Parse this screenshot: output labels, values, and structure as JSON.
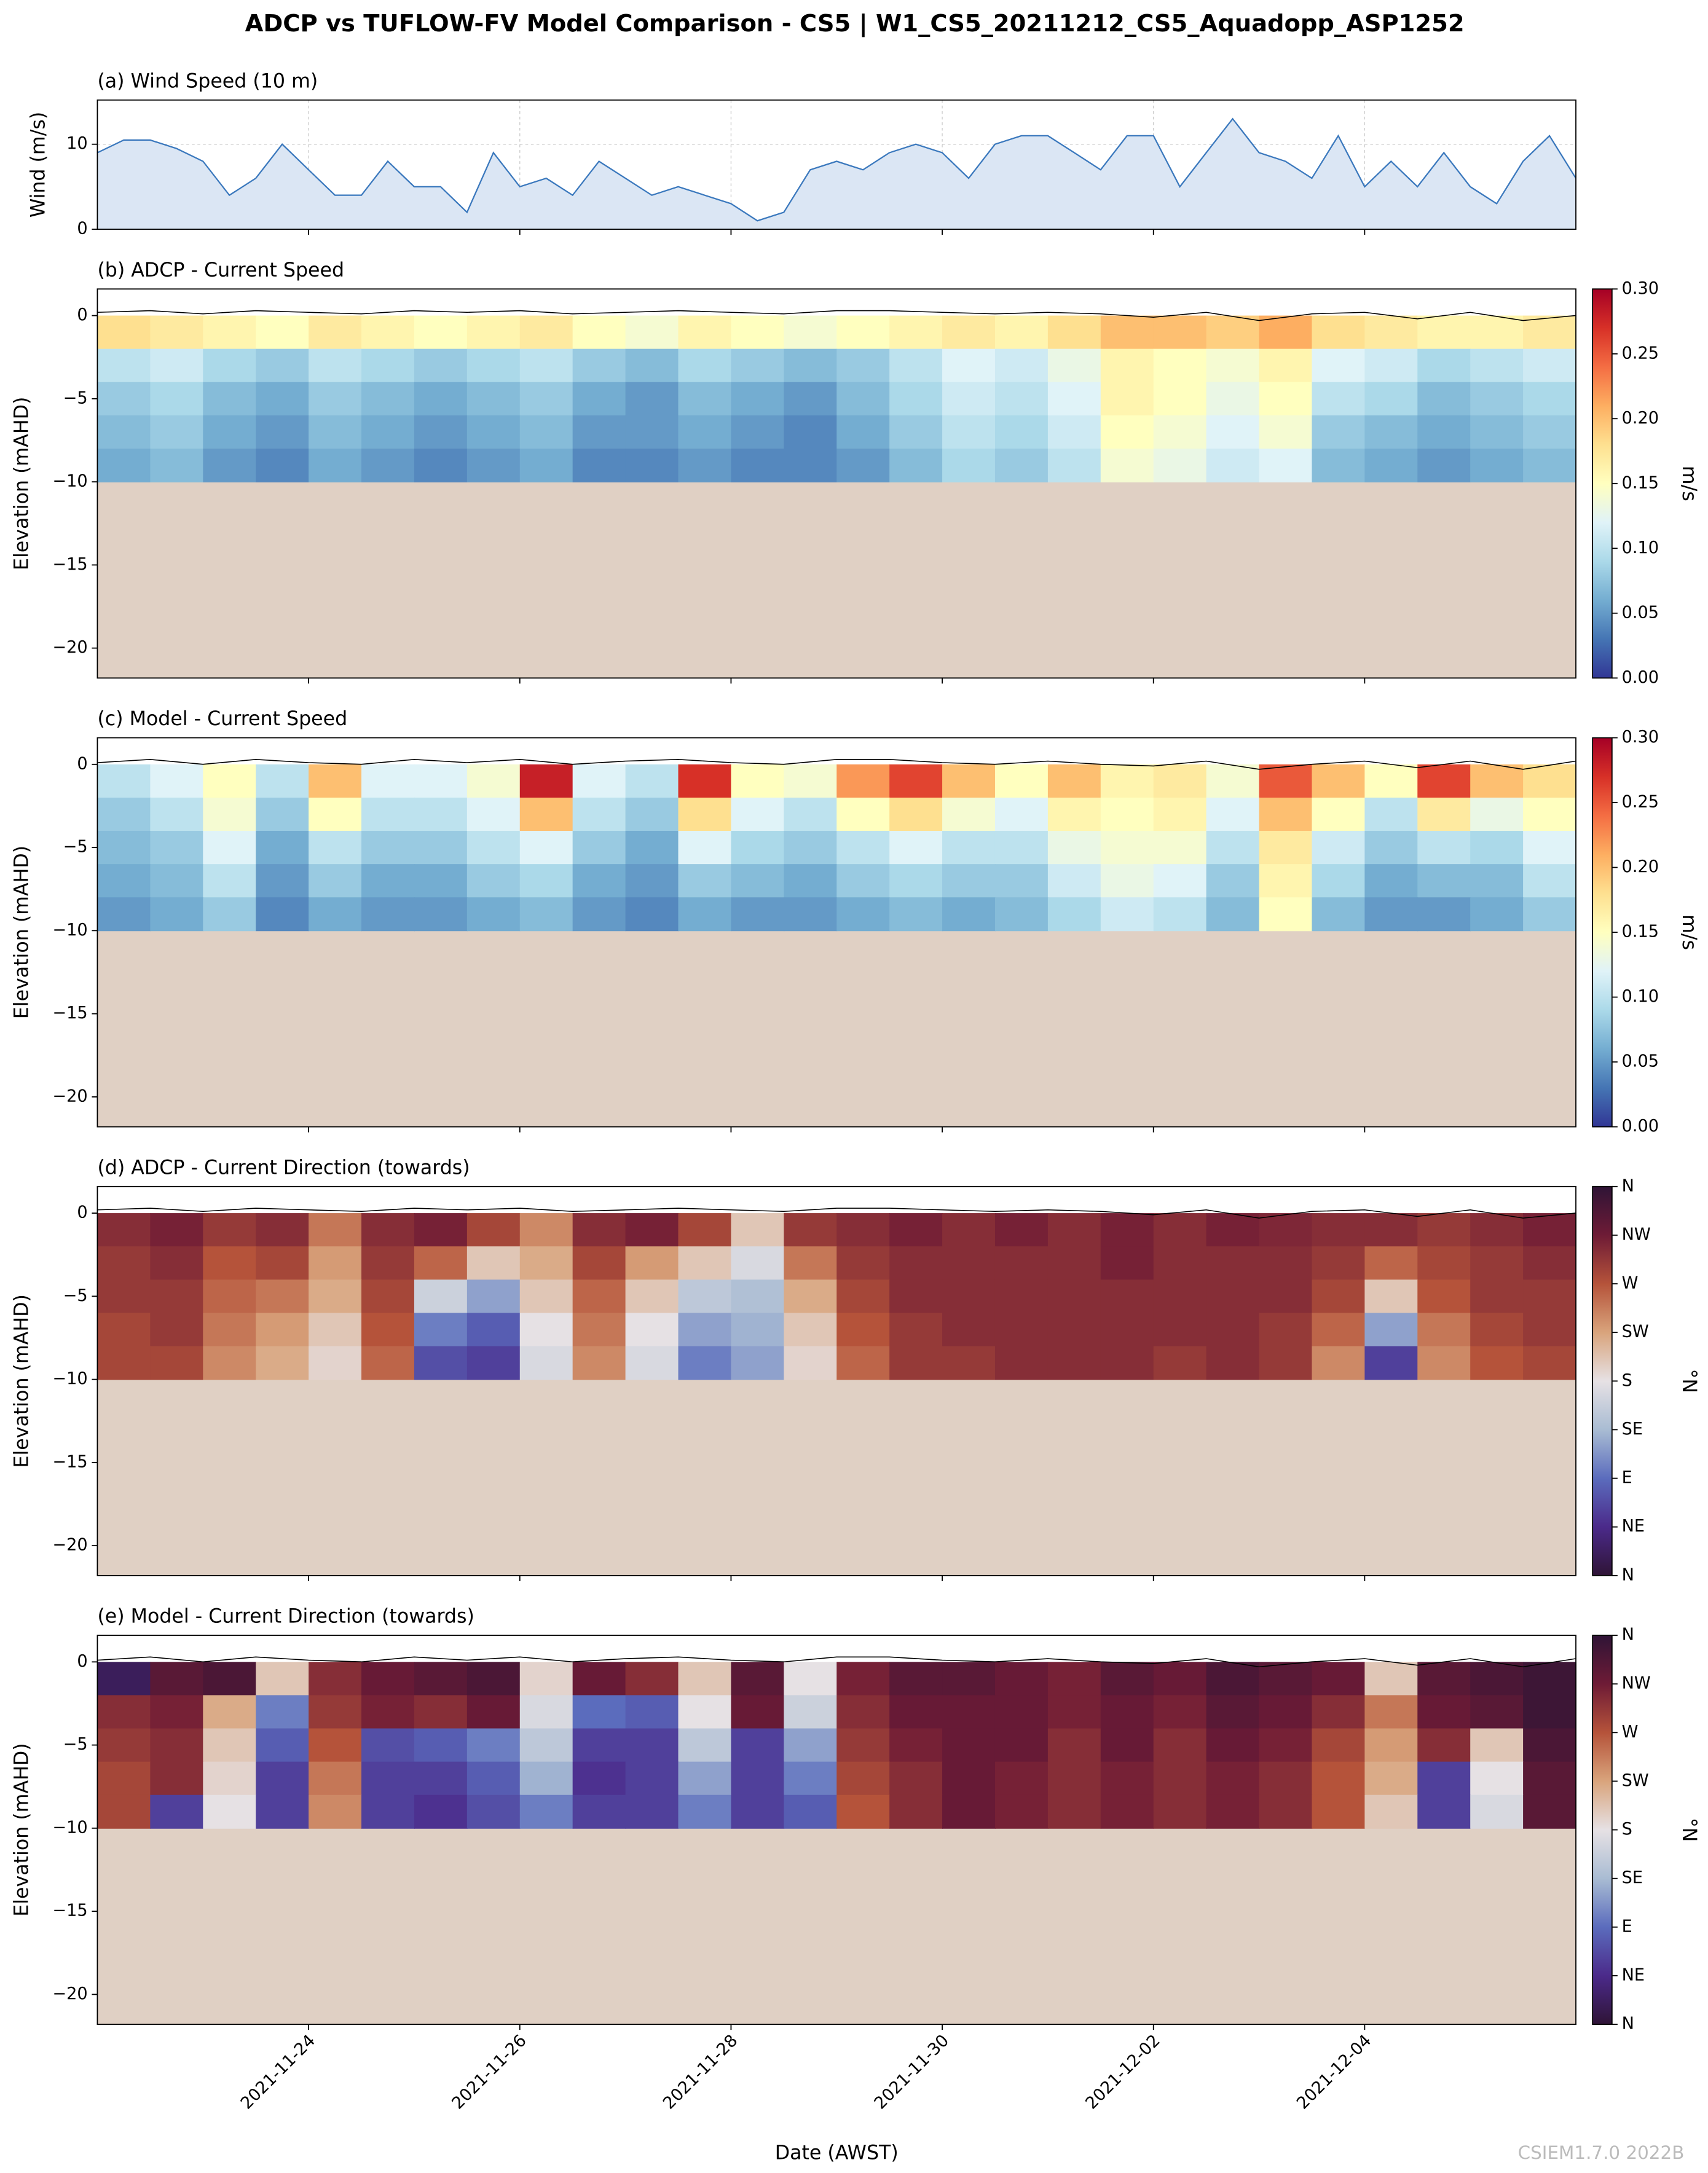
{
  "title": "ADCP vs TUFLOW-FV Model Comparison - CS5 | W1_CS5_20211212_CS5_Aquadopp_ASP1252",
  "watermark": "CSIEM1.7.0 2022B",
  "x_axis": {
    "label": "Date (AWST)",
    "lim": [
      "2021-11-22",
      "2021-12-06"
    ],
    "ticks": [
      "2021-11-24",
      "2021-11-26",
      "2021-11-28",
      "2021-11-30",
      "2021-12-02",
      "2021-12-04"
    ]
  },
  "chart_data": [
    {
      "type": "area",
      "title": "(a) Wind Speed (10 m)",
      "ylabel": "Wind (m/s)",
      "color": "#3a78bd",
      "fill": "#dbe6f4",
      "grid": true,
      "ylim": [
        0,
        15.2
      ],
      "yticks": [
        0,
        10
      ],
      "values": [
        9,
        10.5,
        10.5,
        9.5,
        8,
        4,
        6,
        10,
        7,
        4,
        4,
        8,
        5,
        5,
        2,
        9,
        5,
        6,
        4,
        8,
        6,
        4,
        5,
        4,
        3,
        1,
        2,
        7,
        8,
        7,
        9,
        10,
        9,
        6,
        10,
        11,
        11,
        9,
        7,
        11,
        11,
        5,
        9,
        13,
        9,
        8,
        6,
        11,
        5,
        8,
        5,
        9,
        5,
        3,
        8,
        11,
        6
      ]
    },
    {
      "type": "heatmap",
      "title": "(b) ADCP - Current Speed",
      "ylabel": "Elevation (mAHD)",
      "colorbar_label": "m/s",
      "bed_color": "#e0d0c4",
      "ylim": [
        -21.8,
        1.6
      ],
      "yticks": [
        {
          "value": -20,
          "label": "−20"
        },
        {
          "value": -15,
          "label": "−15"
        },
        {
          "value": -10,
          "label": "−10"
        },
        {
          "value": -5,
          "label": "−5"
        },
        0
      ],
      "clim": [
        0,
        0.3
      ],
      "cticks": [
        {
          "value": 0,
          "label": "0.00"
        },
        {
          "value": 0.05,
          "label": "0.05"
        },
        {
          "value": 0.1,
          "label": "0.10"
        },
        {
          "value": 0.15,
          "label": "0.15"
        },
        {
          "value": 0.2,
          "label": "0.20"
        },
        {
          "value": 0.25,
          "label": "0.25"
        },
        {
          "value": 0.3,
          "label": "0.30"
        }
      ],
      "colorscale": [
        "#313695",
        "#4575b4",
        "#74add1",
        "#abd9e9",
        "#e0f3f8",
        "#ffffbf",
        "#fee090",
        "#fdae61",
        "#f46d43",
        "#d73027",
        "#a50026"
      ],
      "row_edges": [
        0,
        -2,
        -4,
        -6,
        -8,
        -10
      ],
      "surface": [
        0.2,
        0.3,
        0.1,
        0.3,
        0.2,
        0.1,
        0.3,
        0.2,
        0.3,
        0.1,
        0.2,
        0.3,
        0.2,
        0.1,
        0.3,
        0.3,
        0.2,
        0.1,
        0.2,
        0.1,
        -0.1,
        0.2,
        -0.3,
        0.1,
        0.2,
        -0.2,
        0.2,
        -0.3,
        0.0
      ],
      "values": [
        [
          0.18,
          0.17,
          0.16,
          0.15,
          0.17,
          0.16,
          0.15,
          0.16,
          0.17,
          0.15,
          0.14,
          0.16,
          0.15,
          0.14,
          0.15,
          0.16,
          0.17,
          0.16,
          0.18,
          0.2,
          0.2,
          0.19,
          0.21,
          0.18,
          0.17,
          0.16,
          0.16,
          0.17
        ],
        [
          0.1,
          0.11,
          0.09,
          0.08,
          0.1,
          0.09,
          0.08,
          0.09,
          0.1,
          0.08,
          0.07,
          0.09,
          0.08,
          0.07,
          0.08,
          0.1,
          0.12,
          0.11,
          0.13,
          0.16,
          0.15,
          0.14,
          0.16,
          0.12,
          0.11,
          0.09,
          0.1,
          0.11
        ],
        [
          0.08,
          0.09,
          0.07,
          0.06,
          0.08,
          0.07,
          0.06,
          0.07,
          0.08,
          0.06,
          0.05,
          0.07,
          0.06,
          0.05,
          0.07,
          0.09,
          0.11,
          0.1,
          0.12,
          0.16,
          0.15,
          0.13,
          0.15,
          0.1,
          0.09,
          0.07,
          0.08,
          0.09
        ],
        [
          0.07,
          0.08,
          0.06,
          0.05,
          0.07,
          0.06,
          0.05,
          0.06,
          0.07,
          0.05,
          0.05,
          0.06,
          0.05,
          0.04,
          0.06,
          0.08,
          0.1,
          0.09,
          0.11,
          0.15,
          0.14,
          0.12,
          0.14,
          0.08,
          0.07,
          0.06,
          0.07,
          0.08
        ],
        [
          0.06,
          0.07,
          0.05,
          0.04,
          0.06,
          0.05,
          0.04,
          0.05,
          0.06,
          0.04,
          0.04,
          0.05,
          0.04,
          0.04,
          0.05,
          0.07,
          0.09,
          0.08,
          0.1,
          0.14,
          0.13,
          0.11,
          0.12,
          0.07,
          0.06,
          0.05,
          0.06,
          0.07
        ]
      ]
    },
    {
      "type": "heatmap",
      "title": "(c) Model - Current Speed",
      "ylabel": "Elevation (mAHD)",
      "colorbar_label": "m/s",
      "bed_color": "#e0d0c4",
      "ylim": [
        -21.8,
        1.6
      ],
      "yticks": [
        {
          "value": -20,
          "label": "−20"
        },
        {
          "value": -15,
          "label": "−15"
        },
        {
          "value": -10,
          "label": "−10"
        },
        {
          "value": -5,
          "label": "−5"
        },
        0
      ],
      "clim": [
        0,
        0.3
      ],
      "cticks": [
        {
          "value": 0,
          "label": "0.00"
        },
        {
          "value": 0.05,
          "label": "0.05"
        },
        {
          "value": 0.1,
          "label": "0.10"
        },
        {
          "value": 0.15,
          "label": "0.15"
        },
        {
          "value": 0.2,
          "label": "0.20"
        },
        {
          "value": 0.25,
          "label": "0.25"
        },
        {
          "value": 0.3,
          "label": "0.30"
        }
      ],
      "colorscale": [
        "#313695",
        "#4575b4",
        "#74add1",
        "#abd9e9",
        "#e0f3f8",
        "#ffffbf",
        "#fee090",
        "#fdae61",
        "#f46d43",
        "#d73027",
        "#a50026"
      ],
      "row_edges": [
        0,
        -2,
        -4,
        -6,
        -8,
        -10
      ],
      "surface": [
        0.1,
        0.3,
        0.0,
        0.3,
        0.1,
        0.0,
        0.3,
        0.1,
        0.3,
        0.0,
        0.2,
        0.3,
        0.1,
        0.0,
        0.3,
        0.3,
        0.1,
        0.0,
        0.2,
        0.0,
        -0.1,
        0.2,
        -0.3,
        0.0,
        0.2,
        -0.2,
        0.2,
        -0.3,
        0.2
      ],
      "values": [
        [
          0.1,
          0.12,
          0.15,
          0.1,
          0.2,
          0.12,
          0.12,
          0.14,
          0.28,
          0.12,
          0.1,
          0.27,
          0.15,
          0.14,
          0.22,
          0.26,
          0.2,
          0.15,
          0.2,
          0.16,
          0.17,
          0.14,
          0.25,
          0.2,
          0.15,
          0.26,
          0.2,
          0.18
        ],
        [
          0.08,
          0.1,
          0.14,
          0.08,
          0.15,
          0.1,
          0.1,
          0.12,
          0.2,
          0.1,
          0.08,
          0.18,
          0.12,
          0.1,
          0.15,
          0.18,
          0.14,
          0.12,
          0.16,
          0.15,
          0.16,
          0.12,
          0.2,
          0.15,
          0.1,
          0.17,
          0.13,
          0.15
        ],
        [
          0.07,
          0.08,
          0.12,
          0.06,
          0.1,
          0.08,
          0.08,
          0.1,
          0.12,
          0.08,
          0.06,
          0.12,
          0.09,
          0.08,
          0.1,
          0.12,
          0.1,
          0.1,
          0.13,
          0.14,
          0.14,
          0.1,
          0.17,
          0.11,
          0.08,
          0.1,
          0.09,
          0.12
        ],
        [
          0.06,
          0.07,
          0.1,
          0.05,
          0.08,
          0.06,
          0.06,
          0.08,
          0.09,
          0.06,
          0.05,
          0.08,
          0.07,
          0.06,
          0.08,
          0.09,
          0.08,
          0.08,
          0.11,
          0.13,
          0.12,
          0.08,
          0.16,
          0.09,
          0.06,
          0.07,
          0.07,
          0.1
        ],
        [
          0.05,
          0.06,
          0.08,
          0.04,
          0.06,
          0.05,
          0.05,
          0.06,
          0.07,
          0.05,
          0.04,
          0.06,
          0.05,
          0.05,
          0.06,
          0.07,
          0.06,
          0.07,
          0.09,
          0.11,
          0.1,
          0.07,
          0.15,
          0.07,
          0.05,
          0.05,
          0.06,
          0.08
        ]
      ]
    },
    {
      "type": "heatmap",
      "title": "(d) ADCP - Current Direction (towards)",
      "ylabel": "Elevation (mAHD)",
      "colorbar_label": "°N",
      "bed_color": "#e0d0c4",
      "ylim": [
        -21.8,
        1.6
      ],
      "yticks": [
        {
          "value": -20,
          "label": "−20"
        },
        {
          "value": -15,
          "label": "−15"
        },
        {
          "value": -10,
          "label": "−10"
        },
        {
          "value": -5,
          "label": "−5"
        },
        0
      ],
      "clim": [
        0,
        360
      ],
      "cticks": [
        {
          "value": 0,
          "label": "N"
        },
        {
          "value": 45,
          "label": "NE"
        },
        {
          "value": 90,
          "label": "E"
        },
        {
          "value": 135,
          "label": "SE"
        },
        {
          "value": 180,
          "label": "S"
        },
        {
          "value": 225,
          "label": "SW"
        },
        {
          "value": 270,
          "label": "W"
        },
        {
          "value": 315,
          "label": "NW"
        },
        {
          "value": 360,
          "label": "N"
        }
      ],
      "colorscale": [
        "#2f1436",
        "#4b2a8a",
        "#5b6cbd",
        "#a9bcd3",
        "#e6e1e4",
        "#d9a47c",
        "#b5533a",
        "#6e1b36",
        "#2f1436"
      ],
      "row_edges": [
        0,
        -2,
        -4,
        -6,
        -8,
        -10
      ],
      "surface": [
        0.2,
        0.3,
        0.1,
        0.3,
        0.2,
        0.1,
        0.3,
        0.2,
        0.3,
        0.1,
        0.2,
        0.3,
        0.2,
        0.1,
        0.3,
        0.3,
        0.2,
        0.1,
        0.2,
        0.1,
        -0.1,
        0.2,
        -0.3,
        0.1,
        0.2,
        -0.2,
        0.2,
        -0.3,
        0.0
      ],
      "values": [
        [
          300,
          310,
          290,
          300,
          250,
          300,
          310,
          280,
          240,
          300,
          310,
          280,
          200,
          290,
          300,
          310,
          300,
          310,
          300,
          310,
          300,
          310,
          305,
          300,
          300,
          290,
          300,
          310
        ],
        [
          290,
          300,
          270,
          280,
          230,
          290,
          260,
          200,
          220,
          280,
          230,
          200,
          170,
          250,
          290,
          300,
          300,
          300,
          300,
          310,
          300,
          300,
          300,
          290,
          260,
          280,
          290,
          300
        ],
        [
          290,
          290,
          260,
          250,
          220,
          280,
          160,
          120,
          200,
          260,
          200,
          150,
          140,
          220,
          280,
          300,
          300,
          300,
          300,
          300,
          300,
          300,
          300,
          280,
          200,
          270,
          290,
          290
        ],
        [
          280,
          290,
          250,
          230,
          200,
          270,
          100,
          80,
          180,
          250,
          180,
          120,
          130,
          200,
          270,
          290,
          300,
          300,
          300,
          300,
          300,
          300,
          290,
          260,
          120,
          250,
          280,
          290
        ],
        [
          280,
          280,
          240,
          220,
          190,
          260,
          70,
          60,
          170,
          240,
          170,
          100,
          120,
          190,
          260,
          290,
          290,
          300,
          300,
          300,
          290,
          300,
          290,
          240,
          60,
          240,
          270,
          280
        ]
      ]
    },
    {
      "type": "heatmap",
      "title": "(e) Model - Current Direction (towards)",
      "ylabel": "Elevation (mAHD)",
      "colorbar_label": "°N",
      "bed_color": "#e0d0c4",
      "ylim": [
        -21.8,
        1.6
      ],
      "yticks": [
        {
          "value": -20,
          "label": "−20"
        },
        {
          "value": -15,
          "label": "−15"
        },
        {
          "value": -10,
          "label": "−10"
        },
        {
          "value": -5,
          "label": "−5"
        },
        0
      ],
      "clim": [
        0,
        360
      ],
      "cticks": [
        {
          "value": 0,
          "label": "N"
        },
        {
          "value": 45,
          "label": "NE"
        },
        {
          "value": 90,
          "label": "E"
        },
        {
          "value": 135,
          "label": "SE"
        },
        {
          "value": 180,
          "label": "S"
        },
        {
          "value": 225,
          "label": "SW"
        },
        {
          "value": 270,
          "label": "W"
        },
        {
          "value": 315,
          "label": "NW"
        },
        {
          "value": 360,
          "label": "N"
        }
      ],
      "colorscale": [
        "#2f1436",
        "#4b2a8a",
        "#5b6cbd",
        "#a9bcd3",
        "#e6e1e4",
        "#d9a47c",
        "#b5533a",
        "#6e1b36",
        "#2f1436"
      ],
      "row_edges": [
        0,
        -2,
        -4,
        -6,
        -8,
        -10
      ],
      "surface": [
        0.1,
        0.3,
        0.0,
        0.3,
        0.1,
        0.0,
        0.3,
        0.1,
        0.3,
        0.0,
        0.2,
        0.3,
        0.1,
        0.0,
        0.3,
        0.3,
        0.1,
        0.0,
        0.2,
        0.0,
        -0.1,
        0.2,
        -0.3,
        0.0,
        0.2,
        -0.2,
        0.2,
        -0.3,
        0.2
      ],
      "values": [
        [
          20,
          330,
          340,
          200,
          300,
          320,
          330,
          340,
          190,
          320,
          300,
          200,
          330,
          180,
          310,
          330,
          330,
          320,
          310,
          330,
          320,
          340,
          330,
          320,
          200,
          330,
          340,
          350
        ],
        [
          300,
          310,
          220,
          100,
          290,
          310,
          300,
          320,
          170,
          90,
          80,
          180,
          320,
          160,
          300,
          320,
          320,
          320,
          310,
          320,
          310,
          330,
          320,
          300,
          250,
          320,
          330,
          350
        ],
        [
          290,
          300,
          200,
          80,
          270,
          70,
          80,
          100,
          150,
          60,
          60,
          150,
          60,
          120,
          290,
          310,
          320,
          320,
          300,
          320,
          300,
          320,
          310,
          280,
          230,
          300,
          200,
          340
        ],
        [
          280,
          300,
          190,
          60,
          250,
          60,
          60,
          80,
          130,
          50,
          60,
          120,
          60,
          100,
          280,
          300,
          320,
          310,
          300,
          310,
          300,
          310,
          300,
          270,
          220,
          60,
          180,
          330
        ],
        [
          280,
          60,
          180,
          60,
          240,
          60,
          50,
          70,
          100,
          60,
          60,
          100,
          60,
          80,
          270,
          300,
          320,
          310,
          300,
          310,
          300,
          310,
          300,
          270,
          200,
          60,
          170,
          330
        ]
      ]
    }
  ]
}
